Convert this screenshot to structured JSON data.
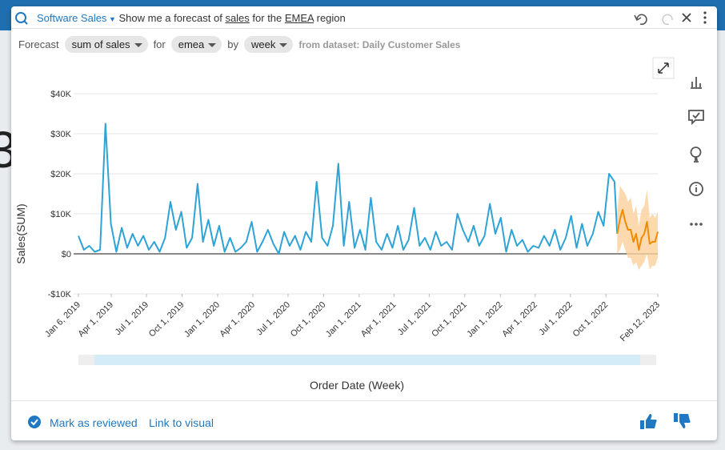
{
  "background_text": "3",
  "header": {
    "topic": "Software Sales",
    "query": [
      "Show me a forecast of ",
      "sales",
      " for the ",
      "EMEA",
      " region"
    ]
  },
  "filters": {
    "prefix": "Forecast",
    "measure": "sum of sales",
    "for": "for",
    "region": "emea",
    "by": "by",
    "period": "week",
    "dataset": "from dataset: Daily Customer Sales"
  },
  "chart_data": {
    "type": "line",
    "y_label": "Sales(SUM)",
    "x_label": "Order Date (Week)",
    "ylim": [
      -10000,
      40000
    ],
    "yticks": [
      {
        "value": -10000,
        "label": "-$10K"
      },
      {
        "value": 0,
        "label": "$0"
      },
      {
        "value": 10000,
        "label": "$10K"
      },
      {
        "value": 20000,
        "label": "$20K"
      },
      {
        "value": 30000,
        "label": "$30K"
      },
      {
        "value": 40000,
        "label": "$40K"
      }
    ],
    "xlim": [
      "2019-01-06",
      "2023-02-12"
    ],
    "xticks": [
      {
        "value": "2019-01-06",
        "label": "Jan 6, 2019"
      },
      {
        "value": "2019-04-01",
        "label": "Apr 1, 2019"
      },
      {
        "value": "2019-07-01",
        "label": "Jul 1, 2019"
      },
      {
        "value": "2019-10-01",
        "label": "Oct 1, 2019"
      },
      {
        "value": "2020-01-01",
        "label": "Jan 1, 2020"
      },
      {
        "value": "2020-04-01",
        "label": "Apr 1, 2020"
      },
      {
        "value": "2020-07-01",
        "label": "Jul 1, 2020"
      },
      {
        "value": "2020-10-01",
        "label": "Oct 1, 2020"
      },
      {
        "value": "2021-01-01",
        "label": "Jan 1, 2021"
      },
      {
        "value": "2021-04-01",
        "label": "Apr 1, 2021"
      },
      {
        "value": "2021-07-01",
        "label": "Jul 1, 2021"
      },
      {
        "value": "2021-10-01",
        "label": "Oct 1, 2021"
      },
      {
        "value": "2022-01-01",
        "label": "Jan 1, 2022"
      },
      {
        "value": "2022-04-01",
        "label": "Apr 1, 2022"
      },
      {
        "value": "2022-07-01",
        "label": "Jul 1, 2022"
      },
      {
        "value": "2022-10-01",
        "label": "Oct 1, 2022"
      },
      {
        "value": "2023-02-12",
        "label": "Feb 12, 2023"
      }
    ],
    "grid": true,
    "series": [
      {
        "color": "#2ea3d6",
        "x": [
          "2019-01-06",
          "2019-01-20",
          "2019-02-03",
          "2019-02-17",
          "2019-03-03",
          "2019-03-17",
          "2019-03-31",
          "2019-04-14",
          "2019-04-28",
          "2019-05-12",
          "2019-05-26",
          "2019-06-09",
          "2019-06-23",
          "2019-07-07",
          "2019-07-21",
          "2019-08-04",
          "2019-08-18",
          "2019-09-01",
          "2019-09-15",
          "2019-09-29",
          "2019-10-13",
          "2019-10-27",
          "2019-11-10",
          "2019-11-24",
          "2019-12-08",
          "2019-12-22",
          "2020-01-05",
          "2020-01-19",
          "2020-02-02",
          "2020-02-16",
          "2020-03-01",
          "2020-03-15",
          "2020-03-29",
          "2020-04-12",
          "2020-04-26",
          "2020-05-10",
          "2020-05-24",
          "2020-06-07",
          "2020-06-21",
          "2020-07-05",
          "2020-07-19",
          "2020-08-02",
          "2020-08-16",
          "2020-08-30",
          "2020-09-13",
          "2020-09-27",
          "2020-10-11",
          "2020-10-25",
          "2020-11-08",
          "2020-11-22",
          "2020-12-06",
          "2020-12-20",
          "2021-01-03",
          "2021-01-17",
          "2021-01-31",
          "2021-02-14",
          "2021-02-28",
          "2021-03-14",
          "2021-03-28",
          "2021-04-11",
          "2021-04-25",
          "2021-05-09",
          "2021-05-23",
          "2021-06-06",
          "2021-06-20",
          "2021-07-04",
          "2021-07-18",
          "2021-08-01",
          "2021-08-15",
          "2021-08-29",
          "2021-09-12",
          "2021-09-26",
          "2021-10-10",
          "2021-10-24",
          "2021-11-07",
          "2021-11-21",
          "2021-12-05",
          "2021-12-19",
          "2022-01-02",
          "2022-01-16",
          "2022-01-30",
          "2022-02-13",
          "2022-02-27",
          "2022-03-13",
          "2022-03-27",
          "2022-04-10",
          "2022-04-24",
          "2022-05-08",
          "2022-05-22",
          "2022-06-05",
          "2022-06-19",
          "2022-07-03",
          "2022-07-17",
          "2022-07-31",
          "2022-08-14",
          "2022-08-28",
          "2022-09-11",
          "2022-09-25",
          "2022-10-09",
          "2022-10-23",
          "2022-10-30"
        ],
        "values": [
          4500,
          1000,
          2000,
          500,
          1000,
          32500,
          7500,
          500,
          6500,
          1500,
          5000,
          2000,
          4500,
          1000,
          3000,
          500,
          4000,
          13000,
          6000,
          10500,
          1500,
          4000,
          17500,
          3000,
          8500,
          2000,
          7000,
          500,
          4000,
          500,
          1500,
          3000,
          8000,
          500,
          3000,
          6000,
          2500,
          0,
          5500,
          2000,
          4500,
          1000,
          5500,
          3000,
          18000,
          4000,
          2000,
          7000,
          22500,
          2000,
          13000,
          1500,
          6000,
          1000,
          14000,
          3000,
          1000,
          5000,
          1500,
          7000,
          1000,
          3500,
          11500,
          2000,
          4000,
          1000,
          5500,
          2000,
          3000,
          1000,
          10000,
          6000,
          3000,
          7000,
          2000,
          4500,
          12500,
          5000,
          9000,
          500,
          6000,
          2000,
          3500,
          500,
          2000,
          1500,
          4500,
          2000,
          6000,
          1000,
          4000,
          9500,
          1500,
          7500,
          2000,
          5000,
          10500,
          7000,
          20000,
          18000,
          5000
        ]
      },
      {
        "color": "#f08c00",
        "band_color": "#fbd09a",
        "x": [
          "2022-10-30",
          "2022-11-06",
          "2022-11-13",
          "2022-11-20",
          "2022-11-27",
          "2022-12-04",
          "2022-12-11",
          "2022-12-18",
          "2022-12-25",
          "2023-01-01",
          "2023-01-08",
          "2023-01-15",
          "2023-01-22",
          "2023-01-29",
          "2023-02-05",
          "2023-02-12"
        ],
        "values": [
          5000,
          8500,
          11000,
          8000,
          6000,
          6000,
          3000,
          5000,
          1000,
          4000,
          5000,
          8000,
          2500,
          3000,
          3000,
          5500
        ],
        "lower": [
          0,
          1000,
          3000,
          1000,
          -1000,
          -1000,
          -3000,
          -2000,
          -4000,
          -3000,
          -2000,
          0,
          -4000,
          -3000,
          -3000,
          -1000
        ],
        "upper": [
          10000,
          17000,
          16000,
          15000,
          13000,
          14000,
          10000,
          12000,
          7000,
          11000,
          12000,
          16000,
          9000,
          10000,
          9000,
          10500
        ]
      }
    ]
  },
  "footer": {
    "review": "Mark as reviewed",
    "link": "Link to visual"
  }
}
